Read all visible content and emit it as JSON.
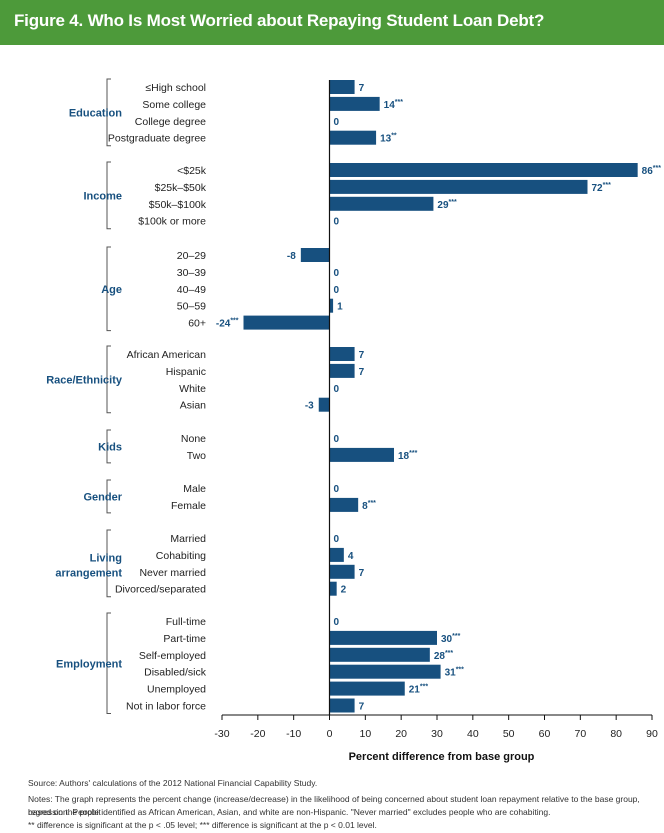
{
  "header": {
    "title": "Figure 4. Who Is Most Worried about Repaying Student Loan Debt?"
  },
  "chart_data": {
    "type": "bar",
    "orientation": "horizontal",
    "title": "Figure 4. Who Is Most Worried about Repaying Student Loan Debt?",
    "xlabel": "Percent difference from base group",
    "ylabel": "",
    "xlim": [
      -30,
      90
    ],
    "xticks": [
      "-30",
      "-20",
      "-10",
      "0",
      "10",
      "20",
      "30",
      "40",
      "50",
      "60",
      "70",
      "80",
      "90"
    ],
    "bar_color": "#17507f",
    "groups": [
      {
        "name": "Education",
        "items": [
          {
            "label": "≤High school",
            "value": 7,
            "sig": ""
          },
          {
            "label": "Some college",
            "value": 14,
            "sig": "***"
          },
          {
            "label": "College degree",
            "value": 0,
            "sig": ""
          },
          {
            "label": "Postgraduate degree",
            "value": 13,
            "sig": "**"
          }
        ]
      },
      {
        "name": "Income",
        "items": [
          {
            "label": "<$25k",
            "value": 86,
            "sig": "***"
          },
          {
            "label": "$25k–$50k",
            "value": 72,
            "sig": "***"
          },
          {
            "label": "$50k–$100k",
            "value": 29,
            "sig": "***"
          },
          {
            "label": "$100k or more",
            "value": 0,
            "sig": ""
          }
        ]
      },
      {
        "name": "Age",
        "items": [
          {
            "label": "20–29",
            "value": -8,
            "sig": ""
          },
          {
            "label": "30–39",
            "value": 0,
            "sig": ""
          },
          {
            "label": "40–49",
            "value": 0,
            "sig": ""
          },
          {
            "label": "50–59",
            "value": 1,
            "sig": ""
          },
          {
            "label": "60+",
            "value": -24,
            "sig": "***"
          }
        ]
      },
      {
        "name": "Race/Ethnicity",
        "items": [
          {
            "label": "African American",
            "value": 7,
            "sig": ""
          },
          {
            "label": "Hispanic",
            "value": 7,
            "sig": ""
          },
          {
            "label": "White",
            "value": 0,
            "sig": ""
          },
          {
            "label": "Asian",
            "value": -3,
            "sig": ""
          }
        ]
      },
      {
        "name": "Kids",
        "items": [
          {
            "label": "None",
            "value": 0,
            "sig": ""
          },
          {
            "label": "Two",
            "value": 18,
            "sig": "***"
          }
        ]
      },
      {
        "name": "Gender",
        "items": [
          {
            "label": "Male",
            "value": 0,
            "sig": ""
          },
          {
            "label": "Female",
            "value": 8,
            "sig": "***"
          }
        ]
      },
      {
        "name": "Living arrangement",
        "items": [
          {
            "label": "Married",
            "value": 0,
            "sig": ""
          },
          {
            "label": "Cohabiting",
            "value": 4,
            "sig": ""
          },
          {
            "label": "Never married",
            "value": 7,
            "sig": ""
          },
          {
            "label": "Divorced/separated",
            "value": 2,
            "sig": ""
          }
        ]
      },
      {
        "name": "Employment",
        "items": [
          {
            "label": "Full-time",
            "value": 0,
            "sig": ""
          },
          {
            "label": "Part-time",
            "value": 30,
            "sig": "***"
          },
          {
            "label": "Self-employed",
            "value": 28,
            "sig": "***"
          },
          {
            "label": "Disabled/sick",
            "value": 31,
            "sig": "***"
          },
          {
            "label": "Unemployed",
            "value": 21,
            "sig": "***"
          },
          {
            "label": "Not in labor force",
            "value": 7,
            "sig": ""
          }
        ]
      }
    ]
  },
  "notes": {
    "source": "Source: Authors' calculations of the 2012 National Financial Capability Study.",
    "notes_line1": "Notes: The graph represents the percent change (increase/decrease) in the likelihood of being concerned about student loan repayment relative to the base group, based on the probit",
    "notes_line2": "regression. People identified as African American, Asian, and white are non-Hispanic. \"Never married\" excludes people who are cohabiting.",
    "significance": "** difference is significant at the p < .05 level; *** difference is significant at the p < 0.01 level."
  }
}
